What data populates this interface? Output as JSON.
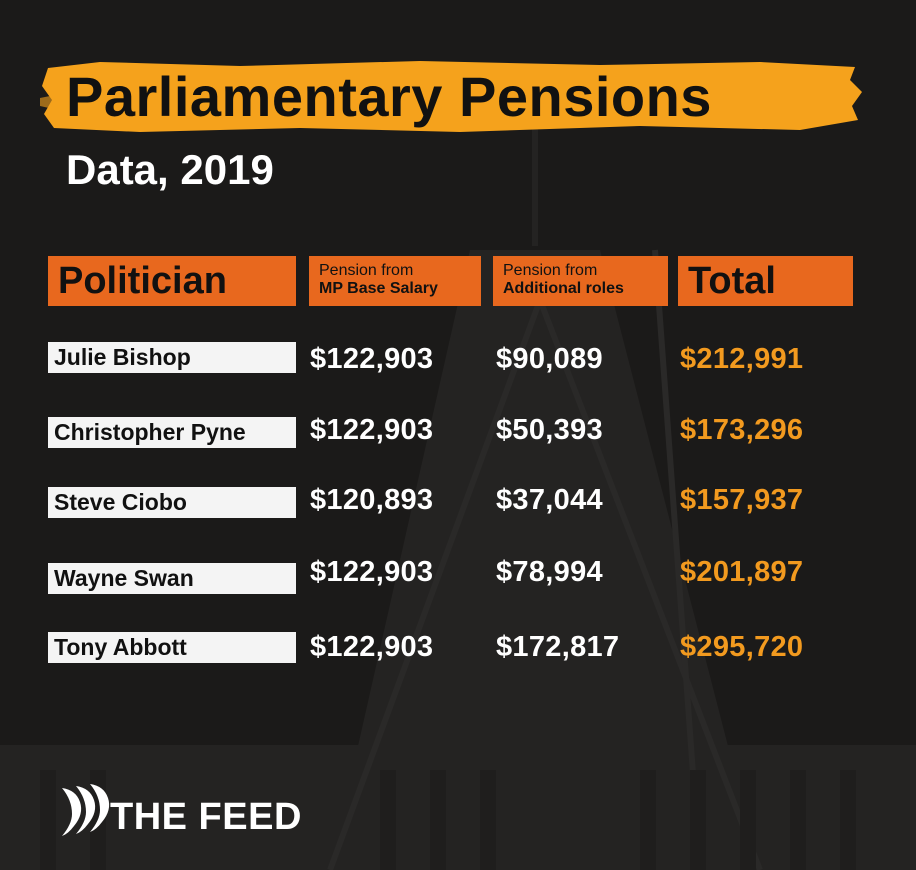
{
  "title": "Parliamentary Pensions",
  "subtitle": "Data, 2019",
  "colors": {
    "background": "#1b1a19",
    "accent_orange": "#e8681e",
    "title_highlight": "#f5a21c",
    "total_text": "#f29a1f",
    "value_text": "#ffffff",
    "name_cell": "#f4f4f4"
  },
  "table": {
    "headers": {
      "politician": "Politician",
      "base_line1": "Pension from",
      "base_line2": "MP Base Salary",
      "additional_line1": "Pension from",
      "additional_line2": "Additional roles",
      "total": "Total"
    },
    "rows": [
      {
        "name": "Julie Bishop",
        "base": "$122,903",
        "additional": "$90,089",
        "total": "$212,991"
      },
      {
        "name": "Christopher Pyne",
        "base": "$122,903",
        "additional": "$50,393",
        "total": "$173,296"
      },
      {
        "name": "Steve Ciobo",
        "base": "$120,893",
        "additional": "$37,044",
        "total": "$157,937"
      },
      {
        "name": "Wayne Swan",
        "base": "$122,903",
        "additional": "$78,994",
        "total": "$201,897"
      },
      {
        "name": "Tony Abbott",
        "base": "$122,903",
        "additional": "$172,817",
        "total": "$295,720"
      }
    ]
  },
  "branding": {
    "logo_icon": "sbs-logo-icon",
    "name": "THE FEED"
  }
}
